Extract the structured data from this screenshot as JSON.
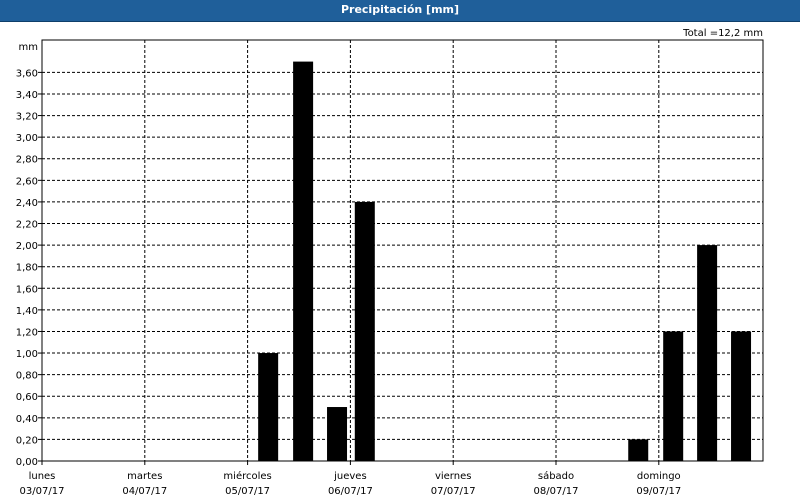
{
  "window": {
    "title": "Precipitación [mm]"
  },
  "chart_data": {
    "type": "bar",
    "title": "Precipitación [mm]",
    "total_label": "Total =12,2 mm",
    "ylabel": "mm",
    "ylim": [
      0,
      3.9
    ],
    "y_ticks": [
      {
        "v": 0.0,
        "t": "0,00"
      },
      {
        "v": 0.2,
        "t": "0,20"
      },
      {
        "v": 0.4,
        "t": "0,40"
      },
      {
        "v": 0.6,
        "t": "0,60"
      },
      {
        "v": 0.8,
        "t": "0,80"
      },
      {
        "v": 1.0,
        "t": "1,00"
      },
      {
        "v": 1.2,
        "t": "1,20"
      },
      {
        "v": 1.4,
        "t": "1,40"
      },
      {
        "v": 1.6,
        "t": "1,60"
      },
      {
        "v": 1.8,
        "t": "1,80"
      },
      {
        "v": 2.0,
        "t": "2,00"
      },
      {
        "v": 2.2,
        "t": "2,20"
      },
      {
        "v": 2.4,
        "t": "2,40"
      },
      {
        "v": 2.6,
        "t": "2,60"
      },
      {
        "v": 2.8,
        "t": "2,80"
      },
      {
        "v": 3.0,
        "t": "3,00"
      },
      {
        "v": 3.2,
        "t": "3,20"
      },
      {
        "v": 3.4,
        "t": "3,40"
      },
      {
        "v": 3.6,
        "t": "3,60"
      }
    ],
    "days": [
      {
        "name": "lunes",
        "date": "03/07/17"
      },
      {
        "name": "martes",
        "date": "04/07/17"
      },
      {
        "name": "miércoles",
        "date": "05/07/17"
      },
      {
        "name": "jueves",
        "date": "06/07/17"
      },
      {
        "name": "viernes",
        "date": "07/07/17"
      },
      {
        "name": "sábado",
        "date": "08/07/17"
      },
      {
        "name": "domingo",
        "date": "09/07/17"
      }
    ],
    "bars": [
      {
        "day_offset": 2.2,
        "value": 1.0
      },
      {
        "day_offset": 2.54,
        "value": 3.7
      },
      {
        "day_offset": 2.87,
        "value": 0.5
      },
      {
        "day_offset": 3.14,
        "value": 2.4
      },
      {
        "day_offset": 5.8,
        "value": 0.2
      },
      {
        "day_offset": 6.14,
        "value": 1.2
      },
      {
        "day_offset": 6.47,
        "value": 2.0
      },
      {
        "day_offset": 6.8,
        "value": 1.2
      }
    ],
    "bar_color": "#000000",
    "grid": true
  }
}
